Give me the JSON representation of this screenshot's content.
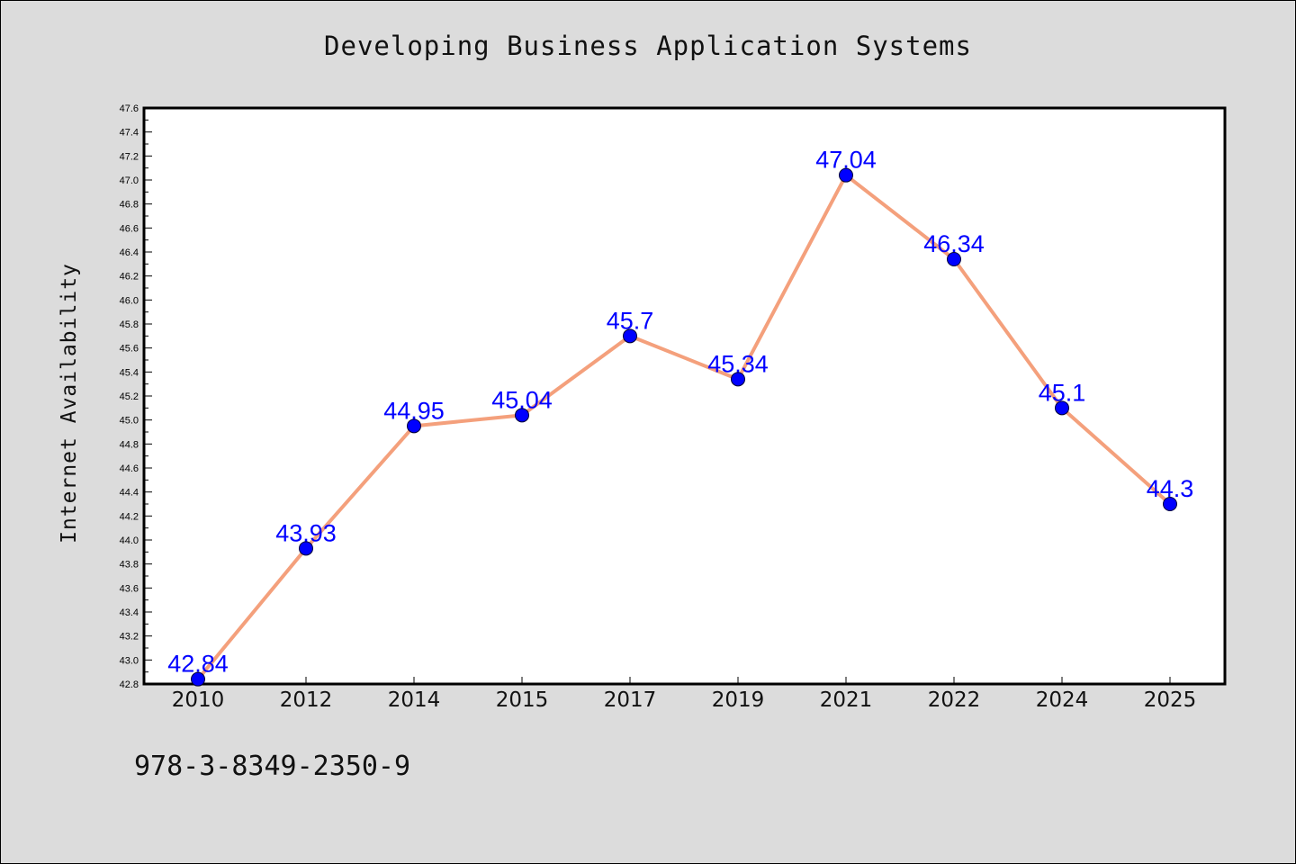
{
  "chart_data": {
    "type": "line",
    "title": "Developing Business Application Systems",
    "xlabel": "",
    "ylabel": "Internet Availability",
    "categories": [
      "2010",
      "2012",
      "2014",
      "2015",
      "2017",
      "2019",
      "2021",
      "2022",
      "2024",
      "2025"
    ],
    "series": [
      {
        "values": [
          42.84,
          43.93,
          44.95,
          45.04,
          45.7,
          45.34,
          47.04,
          46.34,
          45.1,
          44.3
        ],
        "data_labels": [
          "42.84",
          "43.93",
          "44.95",
          "45.04",
          "45.7",
          "45.34",
          "47.04",
          "46.34",
          "45.1",
          "44.3"
        ],
        "line_color": "#f4a07c",
        "marker_color": "#0000ff",
        "label_color": "#0000ff"
      }
    ],
    "ylim": [
      42.8,
      47.6
    ],
    "yticks": [
      "42.8",
      "43.0",
      "43.2",
      "43.4",
      "43.6",
      "43.8",
      "44.0",
      "44.2",
      "44.4",
      "44.6",
      "44.8",
      "45.0",
      "45.2",
      "45.4",
      "45.6",
      "45.8",
      "46.0",
      "46.2",
      "46.4",
      "46.6",
      "46.8",
      "47.0",
      "47.2",
      "47.4",
      "47.6"
    ],
    "grid": false,
    "legend": "none"
  },
  "footer_text": "978-3-8349-2350-9",
  "colors": {
    "background": "#dcdcdc",
    "plot_background": "#ffffff",
    "line": "#f4a07c",
    "marker": "#0000ff",
    "data_label": "#0000ff"
  }
}
